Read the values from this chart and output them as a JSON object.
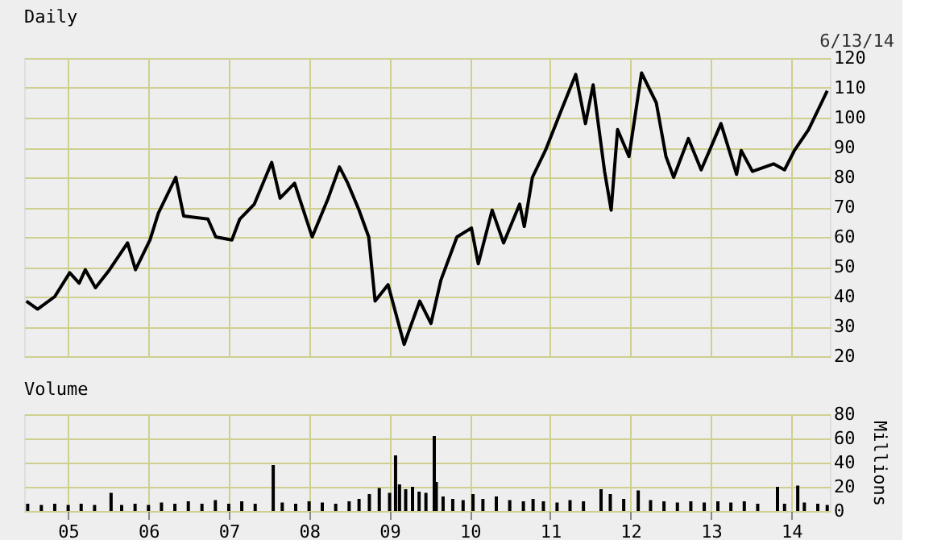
{
  "chart_data": [
    {
      "type": "line",
      "title": "Daily",
      "annotations": [
        "6/13/14"
      ],
      "tick_labels": "y",
      "grid": true,
      "xlim": [
        "2004-06-15",
        "2014-06-25"
      ],
      "xticks": [
        {
          "value": "2005-01-01",
          "label": null
        },
        {
          "value": "2006-01-01",
          "label": null
        },
        {
          "value": "2007-01-01",
          "label": null
        },
        {
          "value": "2008-01-01",
          "label": null
        },
        {
          "value": "2009-01-01",
          "label": null
        },
        {
          "value": "2010-01-01",
          "label": null
        },
        {
          "value": "2011-01-01",
          "label": null
        },
        {
          "value": "2012-01-01",
          "label": null
        },
        {
          "value": "2013-01-01",
          "label": null
        },
        {
          "value": "2014-01-01",
          "label": null
        }
      ],
      "ylim": [
        20,
        120
      ],
      "yticks": [
        20,
        30,
        40,
        50,
        60,
        70,
        80,
        90,
        100,
        110,
        120
      ],
      "x": [
        "2004-06-25",
        "2004-08-15",
        "2004-11-01",
        "2005-01-08",
        "2005-02-20",
        "2005-03-20",
        "2005-05-05",
        "2005-07-08",
        "2005-09-28",
        "2005-11-03",
        "2006-01-08",
        "2006-02-15",
        "2006-05-05",
        "2006-06-10",
        "2006-09-28",
        "2006-11-03",
        "2007-01-15",
        "2007-02-20",
        "2007-04-27",
        "2007-07-15",
        "2007-08-22",
        "2007-10-27",
        "2008-01-15",
        "2008-03-28",
        "2008-05-18",
        "2008-06-25",
        "2008-08-15",
        "2008-09-28",
        "2008-10-27",
        "2008-12-25",
        "2009-03-08",
        "2009-05-18",
        "2009-07-08",
        "2009-08-22",
        "2009-11-03",
        "2010-01-08",
        "2010-02-08",
        "2010-04-12",
        "2010-06-03",
        "2010-08-15",
        "2010-09-05",
        "2010-10-12",
        "2010-12-10",
        "2011-02-15",
        "2011-04-27",
        "2011-06-10",
        "2011-07-15",
        "2011-09-05",
        "2011-10-05",
        "2011-11-03",
        "2011-12-25",
        "2012-02-20",
        "2012-04-27",
        "2012-06-10",
        "2012-07-15",
        "2012-09-20",
        "2012-11-17",
        "2012-12-25",
        "2013-02-15",
        "2013-04-27",
        "2013-05-18",
        "2013-07-08",
        "2013-10-12",
        "2013-12-01",
        "2014-01-15",
        "2014-03-20",
        "2014-05-18",
        "2014-06-13"
      ],
      "series": [
        {
          "color": "#000000",
          "values": [
            38.5,
            35.8,
            40,
            48,
            44.5,
            49,
            43,
            49,
            58,
            49,
            59,
            68,
            80,
            67,
            66,
            60,
            59,
            66,
            71,
            85,
            73,
            78,
            60,
            73,
            83.5,
            78,
            69,
            60,
            38.5,
            44,
            24,
            38.5,
            31,
            45.5,
            60,
            63,
            51,
            69,
            58,
            71,
            63.5,
            80,
            89,
            101.5,
            114.5,
            98,
            111,
            82,
            69,
            96,
            87,
            115,
            105,
            87,
            80,
            93,
            82.5,
            89,
            98,
            81,
            89,
            82,
            84.5,
            82.5,
            89,
            96,
            105,
            109
          ]
        }
      ]
    },
    {
      "type": "bar",
      "title": "Volume",
      "ylabel": "Millions",
      "grid": true,
      "xlim": [
        "2004-06-15",
        "2014-06-25"
      ],
      "xticks": [
        {
          "value": "2005-01-01",
          "label": "05"
        },
        {
          "value": "2006-01-01",
          "label": "06"
        },
        {
          "value": "2007-01-01",
          "label": "07"
        },
        {
          "value": "2008-01-01",
          "label": "08"
        },
        {
          "value": "2009-01-01",
          "label": "09"
        },
        {
          "value": "2010-01-01",
          "label": "10"
        },
        {
          "value": "2011-01-01",
          "label": "11"
        },
        {
          "value": "2012-01-01",
          "label": "12"
        },
        {
          "value": "2013-01-01",
          "label": "13"
        },
        {
          "value": "2014-01-01",
          "label": "14"
        }
      ],
      "ylim": [
        0,
        80
      ],
      "yticks": [
        0,
        20,
        40,
        60,
        80
      ],
      "x": [
        "2004-07-01",
        "2004-09-01",
        "2004-11-01",
        "2005-01-01",
        "2005-03-01",
        "2005-05-01",
        "2005-07-15",
        "2005-09-01",
        "2005-11-01",
        "2006-01-01",
        "2006-03-01",
        "2006-05-01",
        "2006-07-01",
        "2006-09-01",
        "2006-11-01",
        "2007-01-01",
        "2007-03-01",
        "2007-05-01",
        "2007-07-22",
        "2007-09-01",
        "2007-11-01",
        "2008-01-01",
        "2008-03-01",
        "2008-05-01",
        "2008-07-01",
        "2008-08-15",
        "2008-10-01",
        "2008-11-15",
        "2009-01-01",
        "2009-01-28",
        "2009-02-15",
        "2009-03-15",
        "2009-04-15",
        "2009-05-15",
        "2009-06-15",
        "2009-07-23",
        "2009-08-01",
        "2009-09-01",
        "2009-10-15",
        "2009-12-01",
        "2010-01-15",
        "2010-03-01",
        "2010-05-01",
        "2010-07-01",
        "2010-09-01",
        "2010-10-15",
        "2010-12-01",
        "2011-02-01",
        "2011-04-01",
        "2011-06-01",
        "2011-08-20",
        "2011-10-01",
        "2011-12-01",
        "2012-02-05",
        "2012-04-01",
        "2012-06-01",
        "2012-08-01",
        "2012-10-01",
        "2012-12-01",
        "2013-02-01",
        "2013-04-01",
        "2013-06-01",
        "2013-08-01",
        "2013-10-30",
        "2013-12-01",
        "2014-01-30",
        "2014-03-01",
        "2014-05-01",
        "2014-06-13"
      ],
      "series": [
        {
          "color": "#000000",
          "values": [
            6,
            5,
            6,
            5,
            6,
            5,
            15,
            5,
            6,
            5,
            7,
            6,
            8,
            6,
            9,
            6,
            8,
            6,
            38,
            7,
            6,
            8,
            7,
            6,
            8,
            10,
            14,
            19,
            15,
            46,
            22,
            18,
            20,
            16,
            15,
            62,
            24,
            12,
            10,
            9,
            14,
            10,
            12,
            9,
            8,
            10,
            8,
            7,
            9,
            8,
            18,
            14,
            10,
            17,
            9,
            8,
            7,
            8,
            7,
            8,
            7,
            8,
            6,
            20,
            6,
            21,
            7,
            6,
            5
          ]
        }
      ]
    }
  ]
}
